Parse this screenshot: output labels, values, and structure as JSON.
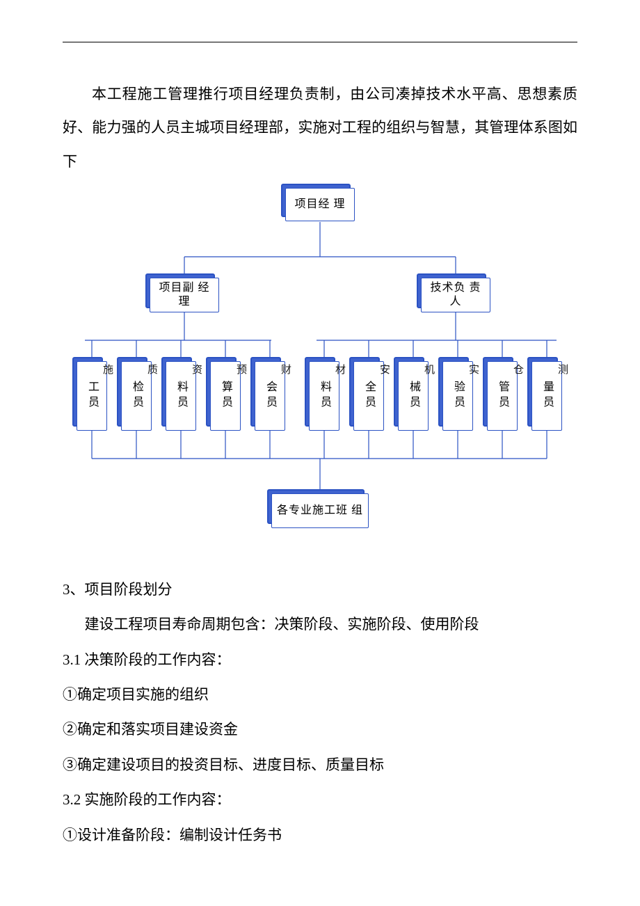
{
  "colors": {
    "text": "#000000",
    "page_bg": "#ffffff",
    "node_border": "#2b52c3",
    "node_shadow_border": "#2b52c3",
    "node_shadow_fill": "#3f63cf",
    "connector": "#2b52c3",
    "tag_text": "#1a1a1a"
  },
  "intro": {
    "paragraph": "本工程施工管理推行项目经理负责制，由公司凑掉技术水平高、思想素质好、能力强的人员主城项目经理部，实施对工程的组织与智慧，其管理体系图如下"
  },
  "chart": {
    "type": "tree",
    "root": {
      "label": "项目经\n理"
    },
    "mid_left": {
      "label": "项目副\n经理",
      "tag": ""
    },
    "mid_right": {
      "label": "技术负\n责人",
      "tag": ""
    },
    "leaves": [
      {
        "label": "工员",
        "tag": "施"
      },
      {
        "label": "检员",
        "tag": "质"
      },
      {
        "label": "料员",
        "tag": "资"
      },
      {
        "label": "算员",
        "tag": "预"
      },
      {
        "label": "会员",
        "tag": "财"
      },
      {
        "label": "料员",
        "tag": "材"
      },
      {
        "label": "全员",
        "tag": "安"
      },
      {
        "label": "械员",
        "tag": "机"
      },
      {
        "label": "验员",
        "tag": "实"
      },
      {
        "label": "管员",
        "tag": "仓"
      },
      {
        "label": "量员",
        "tag": "测"
      }
    ],
    "bottom": {
      "label": "各专业施工班\n组"
    }
  },
  "sections": {
    "s3_title": "3、项目阶段划分",
    "s3_intro": "建设工程项目寿命周期包含：决策阶段、实施阶段、使用阶段",
    "s3_1_title": "3.1 决策阶段的工作内容：",
    "s3_1_items": [
      "①确定项目实施的组织",
      "②确定和落实项目建设资金",
      "③确定建设项目的投资目标、进度目标、质量目标"
    ],
    "s3_2_title": "3.2 实施阶段的工作内容：",
    "s3_2_items": [
      "①设计准备阶段：编制设计任务书"
    ]
  }
}
